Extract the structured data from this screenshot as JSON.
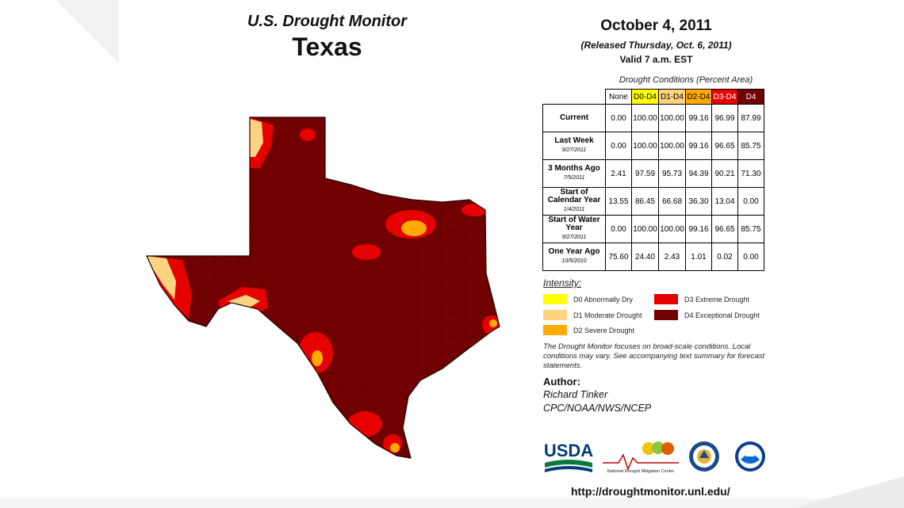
{
  "header": {
    "title": "U.S. Drought Monitor",
    "region": "Texas"
  },
  "date": {
    "main": "October 4, 2011",
    "released": "(Released Thursday, Oct. 6, 2011)",
    "valid": "Valid 7 a.m. EST"
  },
  "table": {
    "caption": "Drought Conditions (Percent Area)",
    "columns": [
      "None",
      "D0-D4",
      "D1-D4",
      "D2-D4",
      "D3-D4",
      "D4"
    ],
    "rows": [
      {
        "label": "Current",
        "date": "",
        "values": [
          "0.00",
          "100.00",
          "100.00",
          "99.16",
          "96.99",
          "87.99"
        ]
      },
      {
        "label": "Last Week",
        "date": "9/27/2011",
        "values": [
          "0.00",
          "100.00",
          "100.00",
          "99.16",
          "96.65",
          "85.75"
        ]
      },
      {
        "label": "3 Months Ago",
        "date": "7/5/2011",
        "values": [
          "2.41",
          "97.59",
          "95.73",
          "94.39",
          "90.21",
          "71.30"
        ]
      },
      {
        "label": "Start of Calendar Year",
        "date": "1/4/2011",
        "values": [
          "13.55",
          "86.45",
          "66.68",
          "36.30",
          "13.04",
          "0.00"
        ]
      },
      {
        "label": "Start of Water Year",
        "date": "9/27/2011",
        "values": [
          "0.00",
          "100.00",
          "100.00",
          "99.16",
          "96.65",
          "85.75"
        ]
      },
      {
        "label": "One Year Ago",
        "date": "10/5/2010",
        "values": [
          "75.60",
          "24.40",
          "2.43",
          "1.01",
          "0.02",
          "0.00"
        ]
      }
    ]
  },
  "legend": {
    "title": "Intensity:",
    "items": [
      {
        "label": "D0 Abnormally Dry",
        "color": "#ffff00"
      },
      {
        "label": "D1 Moderate Drought",
        "color": "#fcd37f"
      },
      {
        "label": "D2 Severe Drought",
        "color": "#ffaa00"
      },
      {
        "label": "D3 Extreme Drought",
        "color": "#e60000"
      },
      {
        "label": "D4 Exceptional Drought",
        "color": "#730000"
      }
    ]
  },
  "note": "The Drought Monitor focuses on broad-scale conditions. Local conditions may vary. See accompanying text summary for forecast statements.",
  "author": {
    "heading": "Author:",
    "name": "Richard Tinker",
    "org": "CPC/NOAA/NWS/NCEP"
  },
  "logos": {
    "usda": "USDA",
    "ndmc": "National Drought Mitigation Center"
  },
  "url": "http://droughtmonitor.unl.edu/"
}
